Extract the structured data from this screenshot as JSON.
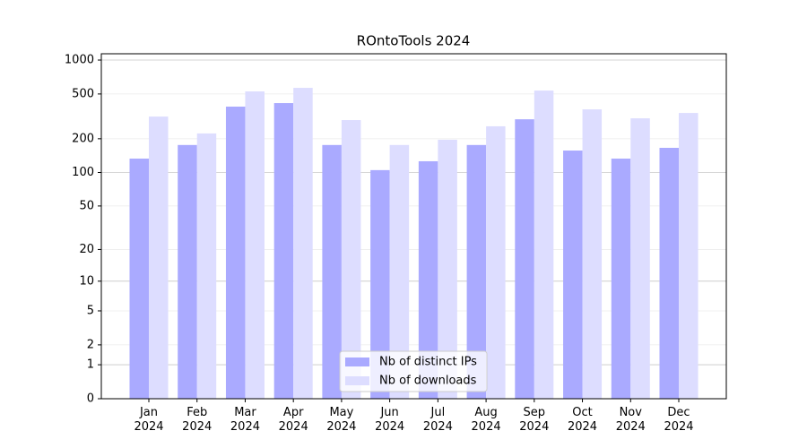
{
  "chart_data": {
    "type": "bar",
    "title": "ROntoTools 2024",
    "categories": [
      "Jan\n2024",
      "Feb\n2024",
      "Mar\n2024",
      "Apr\n2024",
      "May\n2024",
      "Jun\n2024",
      "Jul\n2024",
      "Aug\n2024",
      "Sep\n2024",
      "Oct\n2024",
      "Nov\n2024",
      "Dec\n2024"
    ],
    "series": [
      {
        "name": "Nb of distinct IPs",
        "color": "#aaaaff",
        "values": [
          133,
          176,
          386,
          415,
          176,
          105,
          126,
          176,
          298,
          157,
          133,
          166
        ]
      },
      {
        "name": "Nb of downloads",
        "color": "#ddddff",
        "values": [
          315,
          223,
          527,
          567,
          293,
          176,
          196,
          258,
          536,
          365,
          304,
          339
        ]
      }
    ],
    "yscale": "log1p",
    "ylim": [
      0,
      1137
    ],
    "yticks": [
      0,
      1,
      2,
      5,
      10,
      20,
      50,
      100,
      200,
      500,
      1000
    ],
    "grid": true,
    "legend": "lower center"
  }
}
